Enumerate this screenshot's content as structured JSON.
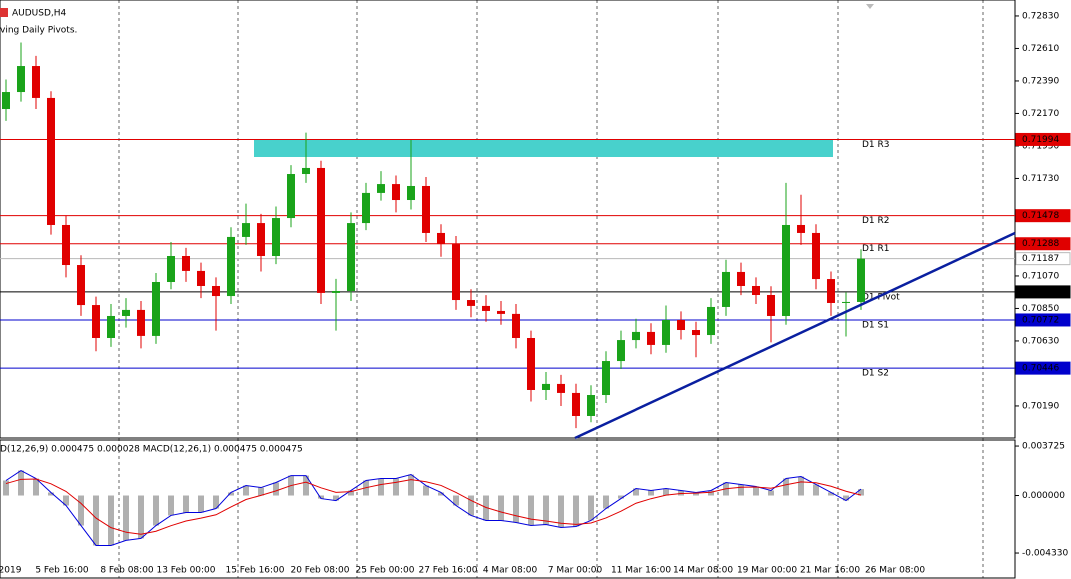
{
  "chart_data": [
    {
      "type": "candlestick",
      "symbol": "AUDUSD,H4",
      "indicator": "ving Daily Pivots.",
      "open": [
        0.722,
        0.72315,
        0.72491,
        0.72275,
        0.71415,
        0.71144,
        0.70873,
        0.7065,
        0.70799,
        0.7084,
        0.70664,
        0.71029,
        0.71205,
        0.71104,
        0.71002,
        0.70934,
        0.71334,
        0.71428,
        0.71205,
        0.71462,
        0.7176,
        0.71801,
        0.70955,
        0.70968,
        0.71428,
        0.71632,
        0.71692,
        0.71584,
        0.71679,
        0.71361,
        0.71286,
        0.70907,
        0.70867,
        0.70833,
        0.70813,
        0.7065,
        0.70298,
        0.70339,
        0.70278,
        0.70122,
        0.70264,
        0.70494,
        0.70636,
        0.70691,
        0.70603,
        0.70772,
        0.70704,
        0.7067,
        0.7086,
        0.71097,
        0.71002,
        0.70941,
        0.70799,
        0.71415,
        0.71361,
        0.71049,
        0.70887,
        0.70894
      ],
      "high": [
        0.724,
        0.7265,
        0.7256,
        0.7232,
        0.7148,
        0.7121,
        0.7093,
        0.7088,
        0.7092,
        0.709,
        0.7109,
        0.713,
        0.7126,
        0.7116,
        0.7106,
        0.714,
        0.7156,
        0.7149,
        0.7154,
        0.7182,
        0.7204,
        0.7185,
        0.7105,
        0.715,
        0.717,
        0.7178,
        0.7175,
        0.7199,
        0.7174,
        0.7142,
        0.7134,
        0.7098,
        0.7094,
        0.709,
        0.7088,
        0.707,
        0.7042,
        0.704,
        0.7034,
        0.7033,
        0.7056,
        0.707,
        0.7078,
        0.7075,
        0.7087,
        0.7083,
        0.7076,
        0.7092,
        0.7118,
        0.7116,
        0.7106,
        0.71,
        0.717,
        0.7162,
        0.7142,
        0.711,
        0.7096,
        0.7125
      ],
      "low": [
        0.7212,
        0.7225,
        0.722,
        0.7135,
        0.7106,
        0.708,
        0.7056,
        0.7059,
        0.7072,
        0.7058,
        0.7061,
        0.7098,
        0.7103,
        0.7092,
        0.707,
        0.7088,
        0.7128,
        0.711,
        0.7115,
        0.714,
        0.717,
        0.7088,
        0.707,
        0.709,
        0.7138,
        0.7158,
        0.715,
        0.7152,
        0.713,
        0.712,
        0.7084,
        0.7079,
        0.7076,
        0.7074,
        0.7058,
        0.7022,
        0.7023,
        0.7019,
        0.7004,
        0.7008,
        0.7021,
        0.7044,
        0.7058,
        0.7054,
        0.7055,
        0.7064,
        0.7052,
        0.7061,
        0.708,
        0.7094,
        0.7088,
        0.7062,
        0.7074,
        0.7128,
        0.7098,
        0.708,
        0.7066,
        0.7084
      ],
      "close": [
        0.72315,
        0.72491,
        0.72275,
        0.71415,
        0.71144,
        0.70873,
        0.7065,
        0.70799,
        0.7084,
        0.70664,
        0.71029,
        0.71205,
        0.71104,
        0.71002,
        0.70934,
        0.71334,
        0.71428,
        0.71205,
        0.71462,
        0.7176,
        0.71801,
        0.70955,
        0.70968,
        0.71428,
        0.71632,
        0.71692,
        0.71584,
        0.71679,
        0.71361,
        0.71286,
        0.70907,
        0.70867,
        0.70833,
        0.70813,
        0.7065,
        0.70298,
        0.70339,
        0.70278,
        0.70122,
        0.70264,
        0.70494,
        0.70636,
        0.70691,
        0.70603,
        0.70772,
        0.70704,
        0.7067,
        0.7086,
        0.71097,
        0.71002,
        0.70941,
        0.70799,
        0.71415,
        0.71361,
        0.71049,
        0.70887,
        0.70894,
        0.71187
      ],
      "bull_color": "#1aa31a",
      "bear_color": "#e00000",
      "ylim": [
        0.69973,
        0.72938
      ],
      "yticks": [
        {
          "value": 0.7283,
          "label": "0.72830"
        },
        {
          "value": 0.7261,
          "label": "0.72610"
        },
        {
          "value": 0.7239,
          "label": "0.72390"
        },
        {
          "value": 0.7217,
          "label": "0.72170"
        },
        {
          "value": 0.7195,
          "label": "0.71950"
        },
        {
          "value": 0.7173,
          "label": "0.71730"
        },
        {
          "value": 0.7107,
          "label": "0.71070"
        },
        {
          "value": 0.7085,
          "label": "0.70850"
        },
        {
          "value": 0.7063,
          "label": "0.70630"
        },
        {
          "value": 0.7019,
          "label": "0.70190"
        }
      ],
      "levels": [
        {
          "name": "D1 R3",
          "value": 0.71994,
          "color": "#e00000"
        },
        {
          "name": "D1 R2",
          "value": 0.71478,
          "color": "#e00000"
        },
        {
          "name": "D1 R1",
          "value": 0.71288,
          "color": "#e00000"
        },
        {
          "value": 0.71187,
          "color": "#b8b8b8"
        },
        {
          "name": "D1 Pivot",
          "value": 0.70962,
          "color": "#000000"
        },
        {
          "name": "D1 S1",
          "value": 0.70772,
          "color": "#0000cc"
        },
        {
          "name": "D1 S2",
          "value": 0.70446,
          "color": "#0000cc"
        }
      ],
      "time_labels": [
        "2019",
        "5 Feb 16:00",
        "8 Feb 08:00",
        "13 Feb 00:00",
        "15 Feb 16:00",
        "20 Feb 08:00",
        "25 Feb 00:00",
        "27 Feb 16:00",
        "4 Mar 08:00",
        "7 Mar 00:00",
        "11 Mar 16:00",
        "14 Mar 08:00",
        "19 Mar 00:00",
        "21 Mar 16:00",
        "26 Mar 08:00"
      ]
    },
    {
      "type": "macd",
      "label": "D(12,26,9) 0.000475 0.000028 MACD(12,26,1) 0.000475 0.000475",
      "macd": [
        0.00113,
        0.00188,
        0.00128,
        0.00023,
        -0.00075,
        -0.00226,
        -0.00376,
        -0.00376,
        -0.00338,
        -0.00323,
        -0.00226,
        -0.0015,
        -0.00128,
        -0.00128,
        -0.00098,
        0.00023,
        0.00075,
        0.0006,
        0.00098,
        0.0015,
        0.0015,
        -0.00023,
        -0.00038,
        0.00038,
        0.00113,
        0.00128,
        0.00128,
        0.00158,
        0.00075,
        0.00023,
        -0.00075,
        -0.0015,
        -0.00188,
        -0.00188,
        -0.00203,
        -0.00226,
        -0.00218,
        -0.00241,
        -0.00233,
        -0.00188,
        -0.00098,
        -0.00023,
        0.00053,
        0.00038,
        0.00053,
        0.00038,
        0.00023,
        0.00038,
        0.00098,
        0.00083,
        0.00068,
        0.00038,
        0.00128,
        0.00143,
        0.00083,
        0.00023,
        -0.00038,
        0.00048
      ],
      "signal": [
        0.0009,
        0.00122,
        0.00124,
        0.00088,
        0.00031,
        -0.00059,
        -0.0017,
        -0.00242,
        -0.00276,
        -0.00292,
        -0.00269,
        -0.00227,
        -0.00192,
        -0.0017,
        -0.00145,
        -0.00086,
        -0.0003,
        1e-05,
        0.00035,
        0.00075,
        0.00101,
        0.00058,
        0.00024,
        0.00029,
        0.00059,
        0.00083,
        0.00099,
        0.0012,
        0.00104,
        0.00076,
        0.00023,
        -0.00037,
        -0.0009,
        -0.00124,
        -0.00152,
        -0.00178,
        -0.00192,
        -0.00209,
        -0.00217,
        -0.00207,
        -0.00169,
        -0.00118,
        -0.00058,
        -0.00024,
        3e-05,
        0.00015,
        0.00018,
        0.00025,
        0.00051,
        0.00062,
        0.00064,
        0.00055,
        0.00081,
        0.00103,
        0.00096,
        0.0007,
        0.00032,
        3e-05
      ],
      "macd_color": "#0000dd",
      "signal_color": "#e00000",
      "hist_color": "#b0b0b0",
      "ylim": [
        -0.00621,
        0.00418
      ],
      "yticks": [
        0.003725,
        {
          "value": 0,
          "label": "0.000000"
        },
        {
          "value": -0.00433,
          "label": "-0.004330"
        }
      ]
    }
  ]
}
